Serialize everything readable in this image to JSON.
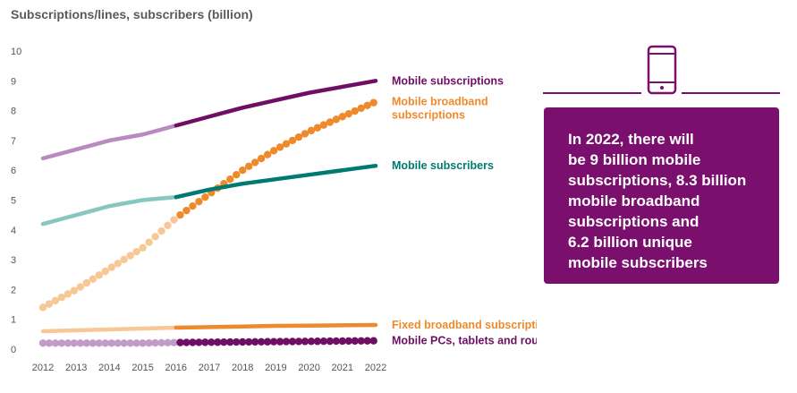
{
  "chart_data": {
    "type": "line",
    "title": "Subscriptions/lines, subscribers (billion)",
    "xlabel": "",
    "ylabel": "",
    "x": [
      2012,
      2013,
      2014,
      2015,
      2016,
      2017,
      2018,
      2019,
      2020,
      2021,
      2022
    ],
    "x_tick_labels": [
      "2012",
      "2013",
      "2014",
      "2015",
      "2016",
      "2017",
      "2018",
      "2019",
      "2020",
      "2021",
      "2022"
    ],
    "y_ticks": [
      "0",
      "1",
      "2",
      "3",
      "4",
      "5",
      "6",
      "7",
      "8",
      "9",
      "10"
    ],
    "ylim": [
      0,
      10
    ],
    "forecast_from": 2016,
    "grid": false,
    "legend": "labels at right end of each series",
    "series": [
      {
        "name": "Mobile subscriptions",
        "style": "line",
        "color": "#6e0f65",
        "history_color": "#b98ac0",
        "values": [
          6.4,
          6.7,
          7.0,
          7.2,
          7.5,
          7.8,
          8.1,
          8.35,
          8.6,
          8.8,
          9.0
        ]
      },
      {
        "name": "Mobile broadband\nsubscriptions",
        "style": "dots",
        "color": "#ef8a2b",
        "history_color": "#f7c896",
        "values": [
          1.4,
          2.0,
          2.7,
          3.4,
          4.4,
          5.2,
          6.0,
          6.7,
          7.3,
          7.8,
          8.3
        ]
      },
      {
        "name": "Mobile subscribers",
        "style": "line",
        "color": "#007a71",
        "history_color": "#86c8c1",
        "values": [
          4.2,
          4.5,
          4.8,
          5.0,
          5.1,
          5.35,
          5.55,
          5.7,
          5.85,
          6.0,
          6.15
        ]
      },
      {
        "name": "Fixed broadband subscriptions",
        "style": "line",
        "color": "#ef8a2b",
        "history_color": "#f7c896",
        "values": [
          0.6,
          0.63,
          0.66,
          0.69,
          0.72,
          0.74,
          0.76,
          0.78,
          0.79,
          0.8,
          0.81
        ]
      },
      {
        "name": "Mobile PCs, tablets and routers",
        "style": "dots",
        "color": "#6e0f65",
        "history_color": "#c39bc9",
        "values": [
          0.2,
          0.2,
          0.2,
          0.2,
          0.22,
          0.23,
          0.24,
          0.25,
          0.26,
          0.27,
          0.28
        ]
      }
    ]
  },
  "info_box": {
    "lines": [
      "In 2022, there will",
      "be 9 billion mobile",
      "subscriptions, 8.3 billion",
      "mobile broadband",
      "subscriptions and",
      "6.2 billion unique",
      "mobile subscribers"
    ],
    "bg_color": "#7b0f6e"
  },
  "icon": {
    "name": "smartphone-icon",
    "color": "#7b0f6e"
  }
}
